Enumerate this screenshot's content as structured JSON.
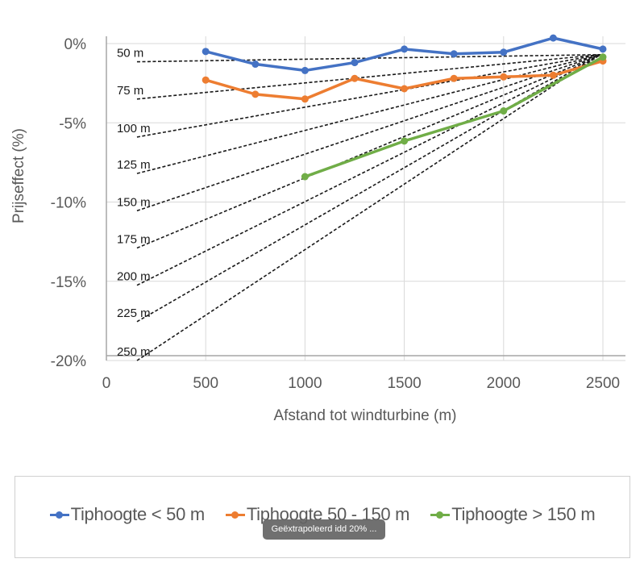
{
  "chart_data": {
    "type": "line",
    "title": "",
    "xlabel": "Afstand tot windturbine (m)",
    "ylabel": "Prijseffect (%)",
    "xlim": [
      0,
      2620
    ],
    "ylim": [
      -20,
      0.5
    ],
    "x_ticks": [
      0,
      500,
      1000,
      1500,
      2000,
      2500
    ],
    "x_tick_labels": [
      "0",
      "500",
      "1000",
      "1500",
      "2000",
      "2500"
    ],
    "y_ticks": [
      0,
      -5,
      -10,
      -15,
      -20
    ],
    "y_tick_labels": [
      "0%",
      "-5%",
      "-10%",
      "-15%",
      "-20%"
    ],
    "grid": true,
    "legend_position": "bottom",
    "series": [
      {
        "name": "Tiphoogte < 50 m",
        "color": "#4472C4",
        "x": [
          500,
          750,
          1000,
          1250,
          1500,
          1750,
          2000,
          2250,
          2500
        ],
        "values": [
          -0.5,
          -1.3,
          -1.7,
          -1.2,
          -0.35,
          -0.65,
          -0.55,
          0.35,
          -0.35
        ]
      },
      {
        "name": "Tiphoogte 50 - 150 m",
        "color": "#ED7D31",
        "x": [
          500,
          750,
          1000,
          1250,
          1500,
          1750,
          2000,
          2250,
          2500
        ],
        "values": [
          -2.3,
          -3.2,
          -3.5,
          -2.2,
          -2.85,
          -2.2,
          -2.1,
          -2.0,
          -1.1
        ]
      },
      {
        "name": "Tiphoogte > 150 m",
        "color": "#70AD47",
        "x": [
          1000,
          1500,
          2000,
          2500
        ],
        "values": [
          -8.4,
          -6.15,
          -4.25,
          -0.85
        ]
      }
    ],
    "extrapolation_lines": {
      "style": "dashed",
      "color": "#1a1a1a",
      "end": {
        "x": 2500,
        "y": -0.7
      },
      "start_x": 150,
      "lines": [
        {
          "label": "50 m",
          "start_y": -1.15
        },
        {
          "label": "75 m",
          "start_y": -3.5
        },
        {
          "label": "100 m",
          "start_y": -5.9
        },
        {
          "label": "125 m",
          "start_y": -8.2
        },
        {
          "label": "150 m",
          "start_y": -10.55
        },
        {
          "label": "175 m",
          "start_y": -12.9
        },
        {
          "label": "200 m",
          "start_y": -15.25
        },
        {
          "label": "225 m",
          "start_y": -17.55
        },
        {
          "label": "250 m",
          "start_y": -20.0
        }
      ]
    }
  },
  "legend": {
    "items": [
      {
        "label": "Tiphoogte < 50 m",
        "color": "#4472C4"
      },
      {
        "label": "Tiphoogte 50 - 150 m",
        "color": "#ED7D31"
      },
      {
        "label": "Tiphoogte > 150 m",
        "color": "#70AD47"
      }
    ]
  },
  "tooltip": {
    "text": "Geëxtrapoleerd idd 20% ..."
  }
}
